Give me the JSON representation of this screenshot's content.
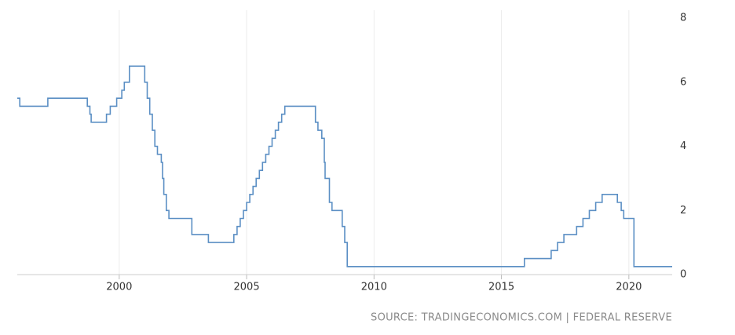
{
  "chart_data": {
    "type": "line",
    "step": "post",
    "grid": "x",
    "color": "#5b8fc4",
    "source": "SOURCE: TRADINGECONOMICS.COM | FEDERAL RESERVE",
    "x": [
      1996.0,
      1996.1,
      1997.2,
      1998.75,
      1998.85,
      1998.9,
      1999.5,
      1999.65,
      1999.9,
      2000.1,
      2000.2,
      2000.4,
      2001.0,
      2001.1,
      2001.2,
      2001.3,
      2001.4,
      2001.5,
      2001.65,
      2001.7,
      2001.75,
      2001.85,
      2001.95,
      2002.85,
      2003.5,
      2004.5,
      2004.625,
      2004.75,
      2004.875,
      2005.0,
      2005.125,
      2005.25,
      2005.375,
      2005.5,
      2005.625,
      2005.75,
      2005.875,
      2006.0,
      2006.125,
      2006.25,
      2006.375,
      2006.5,
      2007.7,
      2007.8,
      2007.95,
      2008.05,
      2008.08,
      2008.25,
      2008.35,
      2008.75,
      2008.85,
      2008.95,
      2015.9,
      2016.95,
      2017.2,
      2017.45,
      2017.95,
      2018.2,
      2018.45,
      2018.7,
      2018.95,
      2019.55,
      2019.7,
      2019.8,
      2020.2,
      2021.7
    ],
    "values": [
      5.5,
      5.25,
      5.5,
      5.25,
      5.0,
      4.75,
      5.0,
      5.25,
      5.5,
      5.75,
      6.0,
      6.5,
      6.0,
      5.5,
      5.0,
      4.5,
      4.0,
      3.75,
      3.5,
      3.0,
      2.5,
      2.0,
      1.75,
      1.25,
      1.0,
      1.25,
      1.5,
      1.75,
      2.0,
      2.25,
      2.5,
      2.75,
      3.0,
      3.25,
      3.5,
      3.75,
      4.0,
      4.25,
      4.5,
      4.75,
      5.0,
      5.25,
      4.75,
      4.5,
      4.25,
      3.5,
      3.0,
      2.25,
      2.0,
      1.5,
      1.0,
      0.25,
      0.5,
      0.75,
      1.0,
      1.25,
      1.5,
      1.75,
      2.0,
      2.25,
      2.5,
      2.25,
      2.0,
      1.75,
      0.25,
      0.25
    ],
    "xlim": [
      1996.0,
      2021.7
    ],
    "xticks": [
      2000,
      2005,
      2010,
      2015,
      2020
    ],
    "ylim": [
      0,
      8
    ],
    "yticks": [
      0,
      2,
      4,
      6,
      8
    ]
  }
}
